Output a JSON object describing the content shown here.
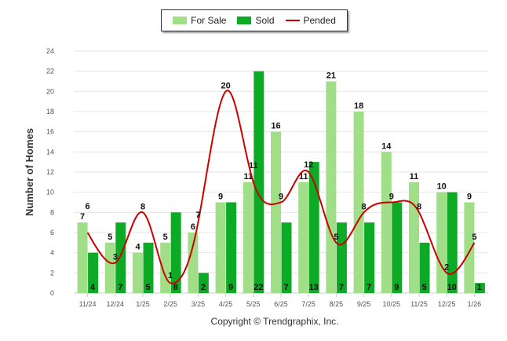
{
  "chart_data": {
    "type": "bar",
    "title": "",
    "xlabel": "",
    "ylabel": "Number of Homes",
    "ylim": [
      0,
      24
    ],
    "yticks": [
      0,
      2,
      4,
      6,
      8,
      10,
      12,
      14,
      16,
      18,
      20,
      22,
      24
    ],
    "grid": true,
    "legend_position": "top-center",
    "categories": [
      "11/24",
      "12/24",
      "1/25",
      "2/25",
      "3/25",
      "4/25",
      "5/25",
      "6/25",
      "7/25",
      "8/25",
      "9/25",
      "10/25",
      "11/25",
      "12/25",
      "1/26"
    ],
    "series": [
      {
        "name": "For Sale",
        "type": "bar",
        "color": "#a0de88",
        "values": [
          7,
          5,
          4,
          5,
          6,
          9,
          11,
          16,
          11,
          21,
          18,
          14,
          11,
          10,
          9
        ]
      },
      {
        "name": "Sold",
        "type": "bar",
        "color": "#0daa26",
        "values": [
          4,
          7,
          5,
          8,
          2,
          9,
          22,
          7,
          13,
          7,
          7,
          9,
          5,
          10,
          1
        ]
      },
      {
        "name": "Pended",
        "type": "line",
        "color": "#cc0000",
        "values": [
          6,
          3,
          8,
          1,
          7,
          20,
          11,
          9,
          12,
          5,
          8,
          9,
          8,
          2,
          5
        ]
      }
    ]
  },
  "copyright": "Copyright © Trendgraphix, Inc."
}
